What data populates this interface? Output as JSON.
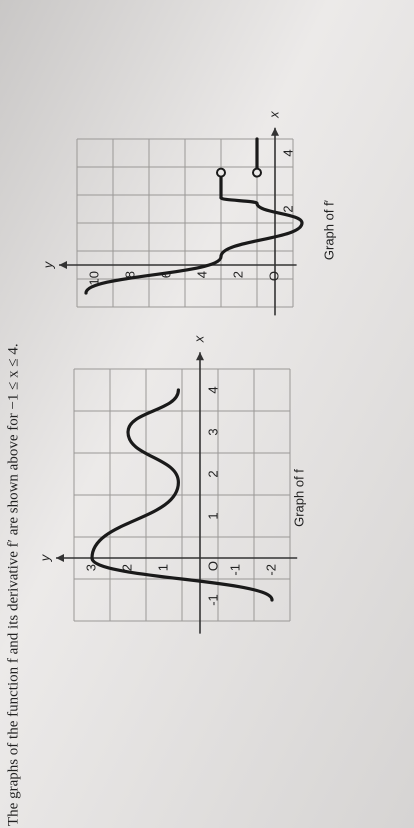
{
  "caption": "The graphs of the function f and its derivative f′ are shown above for −1 ≤ x ≤ 4.",
  "graph_f": {
    "title": "Graph of f",
    "axis_x": "x",
    "axis_y": "y",
    "x_labels": [
      "-1",
      "O",
      "1",
      "2",
      "3",
      "4"
    ],
    "y_labels": [
      "3",
      "2",
      "1",
      "-1",
      "-2"
    ]
  },
  "graph_fprime": {
    "title": "Graph of f′",
    "axis_x": "x",
    "axis_y": "y",
    "x_labels": [
      "2",
      "4"
    ],
    "y_labels": [
      "10",
      "8",
      "6",
      "4",
      "2",
      "O"
    ]
  }
}
